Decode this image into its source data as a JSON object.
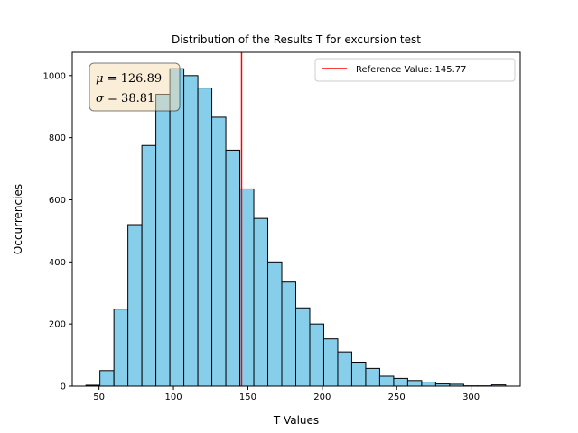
{
  "chart_data": {
    "type": "bar",
    "title": "Distribution of the Results T for excursion test",
    "xlabel": "T Values",
    "ylabel": "Occurrencies",
    "xlim": [
      32,
      333
    ],
    "ylim": [
      0,
      1075
    ],
    "xticks": [
      50,
      100,
      150,
      200,
      250,
      300
    ],
    "yticks": [
      0,
      200,
      400,
      600,
      800,
      1000
    ],
    "bin_width": 9.4,
    "bins": [
      {
        "x0": 41.2,
        "count": 3
      },
      {
        "x0": 50.6,
        "count": 50
      },
      {
        "x0": 60.0,
        "count": 248
      },
      {
        "x0": 69.4,
        "count": 520
      },
      {
        "x0": 78.8,
        "count": 775
      },
      {
        "x0": 88.2,
        "count": 940
      },
      {
        "x0": 97.6,
        "count": 1022
      },
      {
        "x0": 107.0,
        "count": 1000
      },
      {
        "x0": 116.4,
        "count": 960
      },
      {
        "x0": 125.8,
        "count": 866
      },
      {
        "x0": 135.2,
        "count": 760
      },
      {
        "x0": 144.6,
        "count": 635
      },
      {
        "x0": 154.0,
        "count": 540
      },
      {
        "x0": 163.4,
        "count": 400
      },
      {
        "x0": 172.8,
        "count": 335
      },
      {
        "x0": 182.2,
        "count": 252
      },
      {
        "x0": 191.6,
        "count": 200
      },
      {
        "x0": 201.0,
        "count": 152
      },
      {
        "x0": 210.4,
        "count": 110
      },
      {
        "x0": 219.8,
        "count": 77
      },
      {
        "x0": 229.2,
        "count": 57
      },
      {
        "x0": 238.6,
        "count": 32
      },
      {
        "x0": 248.0,
        "count": 25
      },
      {
        "x0": 257.4,
        "count": 18
      },
      {
        "x0": 266.8,
        "count": 13
      },
      {
        "x0": 276.2,
        "count": 7
      },
      {
        "x0": 285.6,
        "count": 6
      },
      {
        "x0": 295.0,
        "count": 1
      },
      {
        "x0": 304.4,
        "count": 1
      },
      {
        "x0": 313.8,
        "count": 4
      }
    ],
    "reference_line": {
      "x": 145.77,
      "label": "Reference Value: 145.77",
      "color": "#ff0000"
    },
    "stats": {
      "mu": "126.89",
      "sigma": "38.81"
    },
    "bar_color": "#87ceeb",
    "edge_color": "#000000",
    "legend_position": "upper right",
    "stats_box_position": "upper left",
    "stats_box_color": "#f5deb3",
    "grid": false
  }
}
